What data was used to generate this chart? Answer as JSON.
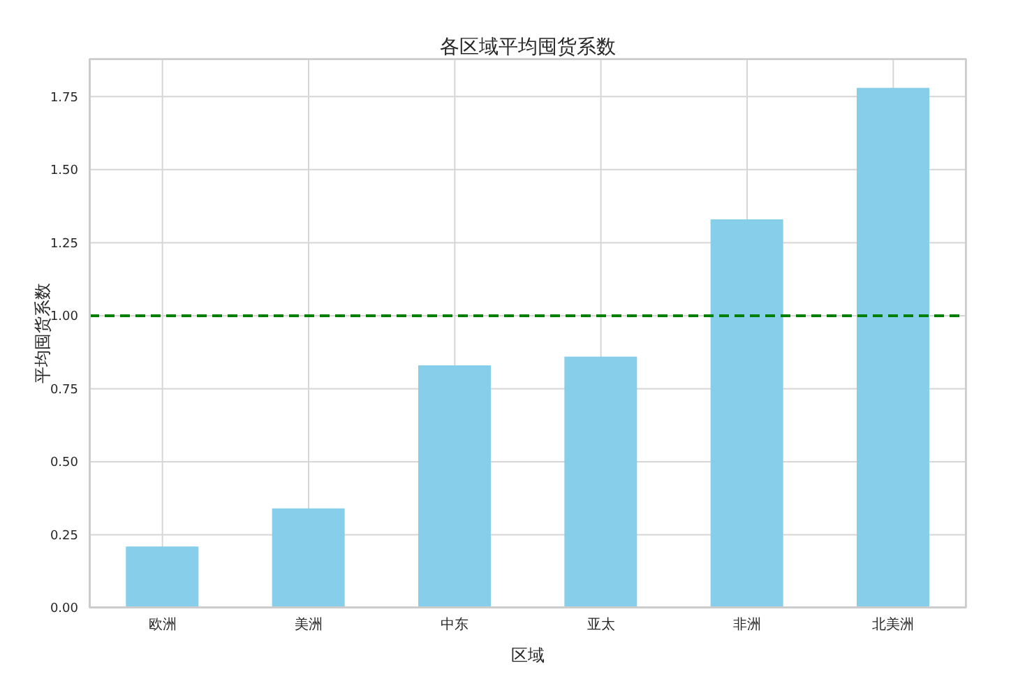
{
  "chart_data": {
    "type": "bar",
    "title": "各区域平均囤货系数",
    "xlabel": "区域",
    "ylabel": "平均囤货系数",
    "categories": [
      "欧洲",
      "美洲",
      "中东",
      "亚太",
      "非洲",
      "北美洲"
    ],
    "values": [
      0.21,
      0.34,
      0.83,
      0.86,
      1.33,
      1.78
    ],
    "color": "#87ceeb",
    "ylim": [
      0,
      1.88
    ],
    "yticks": [
      {
        "value": 0,
        "label": "0.00"
      },
      {
        "value": 0.25,
        "label": "0.25"
      },
      {
        "value": 0.5,
        "label": "0.50"
      },
      {
        "value": 0.75,
        "label": "0.75"
      },
      {
        "value": 1,
        "label": "1.00"
      },
      {
        "value": 1.25,
        "label": "1.25"
      },
      {
        "value": 1.5,
        "label": "1.50"
      },
      {
        "value": 1.75,
        "label": "1.75"
      }
    ],
    "grid": true,
    "ref_lines": [
      {
        "axis": "y",
        "value": 1,
        "color": "#008000",
        "line_style": "dashed"
      }
    ]
  }
}
